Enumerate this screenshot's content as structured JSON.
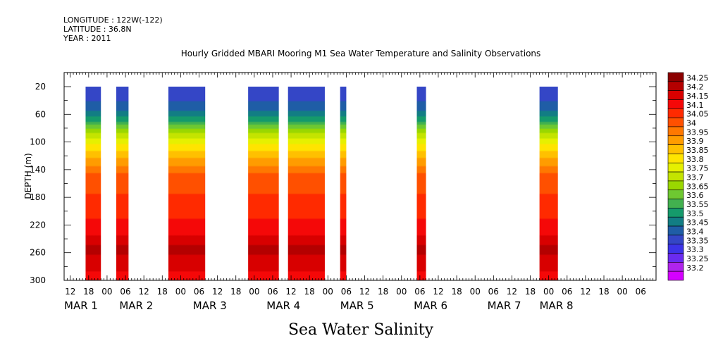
{
  "header": {
    "longitude": "LONGITUDE : 122W(-122)",
    "latitude": "LATITUDE : 36.8N",
    "year": "YEAR : 2011"
  },
  "chart_data": {
    "type": "heatmap",
    "title": "Hourly Gridded MBARI Mooring M1 Sea Water Temperature and Salinity Observations",
    "xlabel": "",
    "ylabel": "DEPTH (m)",
    "caption": "Sea Water Salinity",
    "ylim": [
      300,
      0
    ],
    "y_ticks": [
      20,
      60,
      100,
      140,
      180,
      220,
      260,
      300
    ],
    "x_range_hours": [
      -14,
      179
    ],
    "x_ticks": [
      {
        "h": -12,
        "label": "12"
      },
      {
        "h": -6,
        "label": "18"
      },
      {
        "h": 0,
        "label": "00"
      },
      {
        "h": 6,
        "label": "06"
      },
      {
        "h": 12,
        "label": "12"
      },
      {
        "h": 18,
        "label": "18"
      },
      {
        "h": 24,
        "label": "00"
      },
      {
        "h": 30,
        "label": "06"
      },
      {
        "h": 36,
        "label": "12"
      },
      {
        "h": 42,
        "label": "18"
      },
      {
        "h": 48,
        "label": "00"
      },
      {
        "h": 54,
        "label": "06"
      },
      {
        "h": 60,
        "label": "12"
      },
      {
        "h": 66,
        "label": "18"
      },
      {
        "h": 72,
        "label": "00"
      },
      {
        "h": 78,
        "label": "06"
      },
      {
        "h": 84,
        "label": "12"
      },
      {
        "h": 90,
        "label": "18"
      },
      {
        "h": 96,
        "label": "00"
      },
      {
        "h": 102,
        "label": "06"
      },
      {
        "h": 108,
        "label": "12"
      },
      {
        "h": 114,
        "label": "18"
      },
      {
        "h": 120,
        "label": "00"
      },
      {
        "h": 126,
        "label": "06"
      },
      {
        "h": 132,
        "label": "12"
      },
      {
        "h": 138,
        "label": "18"
      },
      {
        "h": 144,
        "label": "00"
      },
      {
        "h": 150,
        "label": "06"
      },
      {
        "h": 156,
        "label": "12"
      },
      {
        "h": 162,
        "label": "18"
      },
      {
        "h": 168,
        "label": "00"
      },
      {
        "h": 174,
        "label": "06"
      }
    ],
    "date_labels": [
      {
        "h": -14,
        "label": "MAR  1"
      },
      {
        "h": 4,
        "label": "MAR  2"
      },
      {
        "h": 28,
        "label": "MAR  3"
      },
      {
        "h": 52,
        "label": "MAR  4"
      },
      {
        "h": 76,
        "label": "MAR  5"
      },
      {
        "h": 100,
        "label": "MAR  6"
      },
      {
        "h": 124,
        "label": "MAR  7"
      },
      {
        "h": 141,
        "label": "MAR  8"
      }
    ],
    "data_segments": [
      {
        "start": -7,
        "end": -2
      },
      {
        "start": 3,
        "end": 7
      },
      {
        "start": 20,
        "end": 32
      },
      {
        "start": 46,
        "end": 56
      },
      {
        "start": 59,
        "end": 71
      },
      {
        "start": 76,
        "end": 78
      },
      {
        "start": 101,
        "end": 104
      },
      {
        "start": 141,
        "end": 147
      }
    ],
    "profile": [
      {
        "depth": 20,
        "value": 33.36
      },
      {
        "depth": 50,
        "value": 33.42
      },
      {
        "depth": 70,
        "value": 33.55
      },
      {
        "depth": 90,
        "value": 33.72
      },
      {
        "depth": 110,
        "value": 33.84
      },
      {
        "depth": 130,
        "value": 33.93
      },
      {
        "depth": 150,
        "value": 34.02
      },
      {
        "depth": 200,
        "value": 34.08
      },
      {
        "depth": 230,
        "value": 34.13
      },
      {
        "depth": 255,
        "value": 34.22
      },
      {
        "depth": 275,
        "value": 34.17
      },
      {
        "depth": 300,
        "value": 34.13
      }
    ],
    "colorbar": {
      "labels": [
        "34.25",
        "34.2",
        "34.15",
        "34.1",
        "34.05",
        "34",
        "33.95",
        "33.9",
        "33.85",
        "33.8",
        "33.75",
        "33.7",
        "33.65",
        "33.6",
        "33.55",
        "33.5",
        "33.45",
        "33.4",
        "33.35",
        "33.3",
        "33.25",
        "33.2"
      ],
      "colors": [
        "#8b0000",
        "#b40000",
        "#d80000",
        "#f50808",
        "#ff2a00",
        "#ff5000",
        "#ff7800",
        "#ff9c00",
        "#ffc000",
        "#ffe400",
        "#e6f000",
        "#c4e400",
        "#9ad700",
        "#6ec831",
        "#42b14f",
        "#159a6b",
        "#127d84",
        "#1f5da6",
        "#3446c6",
        "#3c33e8",
        "#6a2bf0",
        "#b024ec",
        "#d400ff"
      ]
    }
  }
}
